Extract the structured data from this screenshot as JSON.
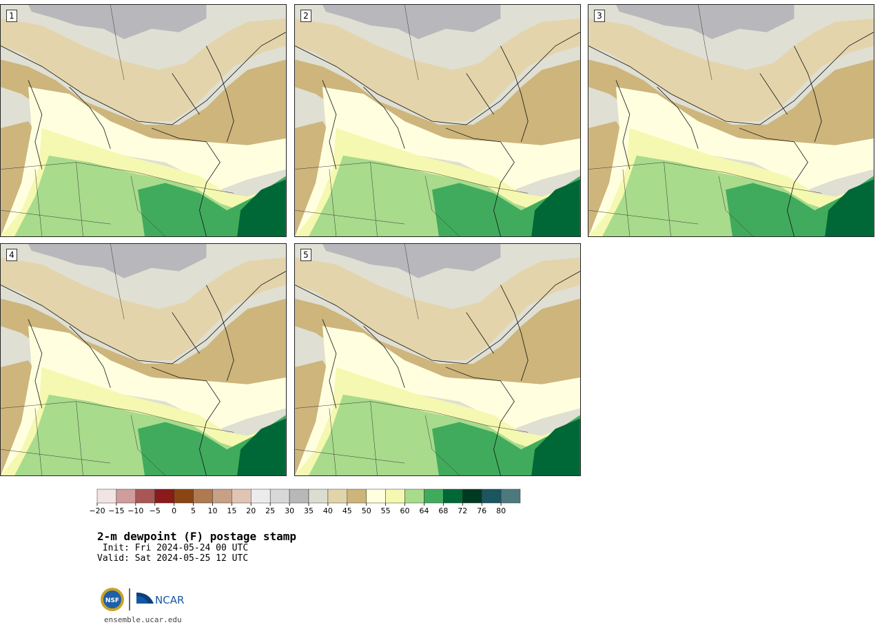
{
  "panels": [
    {
      "label": "1"
    },
    {
      "label": "2"
    },
    {
      "label": "3"
    },
    {
      "label": "4"
    },
    {
      "label": "5"
    }
  ],
  "colorbar": {
    "ticks": [
      "-20",
      "-15",
      "-10",
      "-5",
      "0",
      "5",
      "10",
      "15",
      "20",
      "25",
      "30",
      "35",
      "40",
      "45",
      "50",
      "55",
      "60",
      "64",
      "68",
      "72",
      "76",
      "80"
    ],
    "colors": [
      "#f2e4e4",
      "#d19c9c",
      "#a85656",
      "#8b1a1a",
      "#8b4513",
      "#ad7a52",
      "#c7a085",
      "#e0c4b4",
      "#ececec",
      "#d8d8d8",
      "#b8b8b8",
      "#dcdcd0",
      "#e2d4aa",
      "#cdb579",
      "#ffffe0",
      "#f5f8b0",
      "#a8db8c",
      "#41ab5d",
      "#006837",
      "#003a20",
      "#1a5560",
      "#4c7a7c"
    ]
  },
  "field_colors": {
    "cold": "#b8b8bc",
    "cool": "#dfdfd3",
    "mild": "#e3d4ab",
    "tan": "#cdb57c",
    "pale": "#ffffe0",
    "light_green": "#f5f8b0",
    "green": "#a8db8c",
    "mid_green": "#41ab5d",
    "dark_green": "#006837"
  },
  "title": "2-m dewpoint (F) postage stamp",
  "init": " Init: Fri 2024-05-24 00 UTC",
  "valid": "Valid: Sat 2024-05-25 12 UTC",
  "logos": {
    "nsf": "NSF",
    "ncar": "NCAR"
  },
  "url": "ensemble.ucar.edu"
}
